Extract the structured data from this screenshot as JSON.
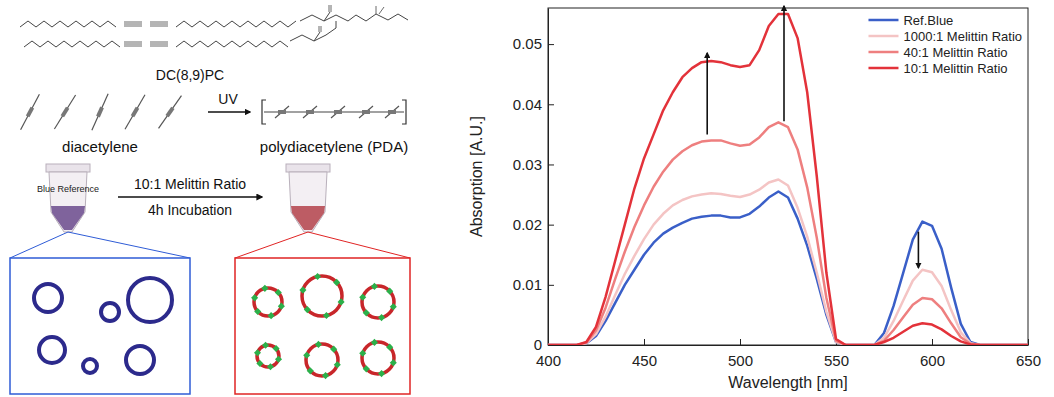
{
  "chart_data": {
    "type": "line",
    "x": [
      400,
      405,
      410,
      415,
      420,
      425,
      430,
      435,
      440,
      445,
      450,
      455,
      460,
      465,
      470,
      475,
      480,
      485,
      490,
      495,
      500,
      505,
      510,
      515,
      520,
      525,
      530,
      535,
      540,
      545,
      550,
      555,
      560,
      565,
      570,
      575,
      580,
      585,
      590,
      595,
      600,
      605,
      610,
      615,
      620,
      625,
      630,
      635,
      640,
      645,
      650
    ],
    "x_label": "Wavelength [nm]",
    "y_label": "Absorption [A.U.]",
    "xlim": [
      400,
      650
    ],
    "xticks": [
      400,
      450,
      500,
      550,
      600,
      650
    ],
    "ylim": [
      0,
      0.056
    ],
    "yticks": [
      0,
      0.01,
      0.02,
      0.03,
      0.04,
      0.05
    ],
    "legend": "upper right",
    "series": [
      {
        "name": "Ref.Blue",
        "color": "#3a5fc8",
        "values": [
          0,
          0,
          0,
          0,
          0.0003,
          0.0015,
          0.004,
          0.007,
          0.01,
          0.0125,
          0.015,
          0.017,
          0.0185,
          0.0195,
          0.0203,
          0.021,
          0.0213,
          0.0215,
          0.0215,
          0.0212,
          0.0212,
          0.0218,
          0.023,
          0.0245,
          0.0255,
          0.0245,
          0.021,
          0.0165,
          0.011,
          0.005,
          0.0005,
          0,
          0,
          0,
          0,
          0.002,
          0.0065,
          0.012,
          0.0175,
          0.0205,
          0.0198,
          0.016,
          0.0095,
          0.0035,
          0.0005,
          0,
          0,
          0,
          0,
          0,
          0
        ]
      },
      {
        "name": "1000:1 Melittin Ratio",
        "color": "#f4c4c4",
        "values": [
          0,
          0,
          0,
          0,
          0.0003,
          0.0018,
          0.0047,
          0.0083,
          0.0118,
          0.0148,
          0.0176,
          0.02,
          0.0218,
          0.0232,
          0.0241,
          0.0247,
          0.025,
          0.0252,
          0.0251,
          0.0248,
          0.0246,
          0.025,
          0.0258,
          0.027,
          0.0275,
          0.0265,
          0.0228,
          0.018,
          0.012,
          0.0055,
          0.0005,
          0,
          0,
          0,
          0,
          0.0012,
          0.004,
          0.0074,
          0.0107,
          0.0125,
          0.0121,
          0.0098,
          0.0058,
          0.0021,
          0.0003,
          0,
          0,
          0,
          0,
          0,
          0
        ]
      },
      {
        "name": "40:1 Melittin Ratio",
        "color": "#ee7f7f",
        "values": [
          0,
          0,
          0,
          0,
          0.0004,
          0.0024,
          0.0062,
          0.011,
          0.0155,
          0.0196,
          0.0232,
          0.0263,
          0.0288,
          0.0308,
          0.0322,
          0.0332,
          0.0338,
          0.034,
          0.034,
          0.0335,
          0.0331,
          0.0333,
          0.0345,
          0.0362,
          0.037,
          0.0362,
          0.0325,
          0.0262,
          0.0178,
          0.0078,
          0.0007,
          0,
          0,
          0,
          0,
          0.0007,
          0.0025,
          0.0046,
          0.0067,
          0.0078,
          0.0076,
          0.0061,
          0.0036,
          0.0013,
          0.0002,
          0,
          0,
          0,
          0,
          0,
          0
        ]
      },
      {
        "name": "10:1 Melittin Ratio",
        "color": "#e3323a",
        "values": [
          0,
          0,
          0,
          0,
          0.0005,
          0.003,
          0.008,
          0.014,
          0.02,
          0.026,
          0.031,
          0.035,
          0.039,
          0.042,
          0.0445,
          0.046,
          0.047,
          0.0472,
          0.047,
          0.0465,
          0.0462,
          0.0465,
          0.049,
          0.053,
          0.055,
          0.055,
          0.051,
          0.042,
          0.028,
          0.012,
          0.001,
          0,
          0,
          0,
          0,
          0.0005,
          0.0012,
          0.0022,
          0.0032,
          0.0036,
          0.0034,
          0.0026,
          0.0015,
          0.0006,
          0.0001,
          0,
          0,
          0,
          0,
          0,
          0
        ]
      }
    ]
  },
  "diagram": {
    "structure_label": "DC(8,9)PC",
    "monomer_label": "diacetylene",
    "stimulus": "UV",
    "polymer_label": "polydiacetylene (PDA)",
    "tube_label": "Blue Reference",
    "treatment": "10:1 Melittin Ratio",
    "incubation": "4h Incubation"
  }
}
